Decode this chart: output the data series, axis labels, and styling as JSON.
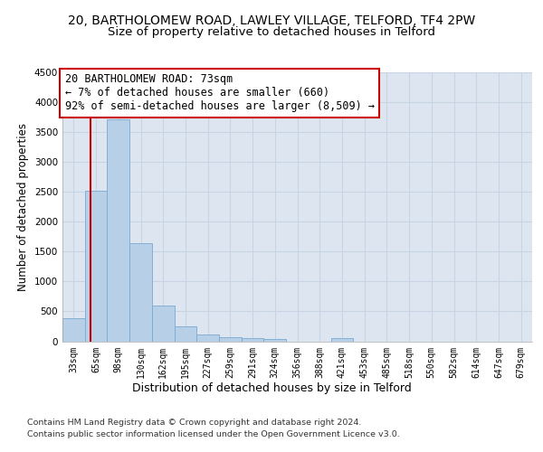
{
  "title_top": "20, BARTHOLOMEW ROAD, LAWLEY VILLAGE, TELFORD, TF4 2PW",
  "title_sub": "Size of property relative to detached houses in Telford",
  "xlabel": "Distribution of detached houses by size in Telford",
  "ylabel": "Number of detached properties",
  "bar_labels": [
    "33sqm",
    "65sqm",
    "98sqm",
    "130sqm",
    "162sqm",
    "195sqm",
    "227sqm",
    "259sqm",
    "291sqm",
    "324sqm",
    "356sqm",
    "388sqm",
    "421sqm",
    "453sqm",
    "485sqm",
    "518sqm",
    "550sqm",
    "582sqm",
    "614sqm",
    "647sqm",
    "679sqm"
  ],
  "bar_values": [
    380,
    2520,
    3720,
    1640,
    600,
    245,
    110,
    65,
    55,
    45,
    0,
    0,
    60,
    0,
    0,
    0,
    0,
    0,
    0,
    0,
    0
  ],
  "bar_color": "#b8cfe8",
  "bar_edge_color": "#7aaad0",
  "grid_color": "#c8d4e4",
  "background_color": "#dde6f0",
  "vline_x_bar": 1,
  "vline_x_offset": 0.25,
  "vline_color": "#cc0000",
  "ylim": [
    0,
    4500
  ],
  "yticks": [
    0,
    500,
    1000,
    1500,
    2000,
    2500,
    3000,
    3500,
    4000,
    4500
  ],
  "annotation_text": "20 BARTHOLOMEW ROAD: 73sqm\n← 7% of detached houses are smaller (660)\n92% of semi-detached houses are larger (8,509) →",
  "footer_line1": "Contains HM Land Registry data © Crown copyright and database right 2024.",
  "footer_line2": "Contains public sector information licensed under the Open Government Licence v3.0.",
  "title_fontsize": 10,
  "subtitle_fontsize": 9.5,
  "tick_fontsize": 7,
  "ylabel_fontsize": 8.5,
  "xlabel_fontsize": 9
}
